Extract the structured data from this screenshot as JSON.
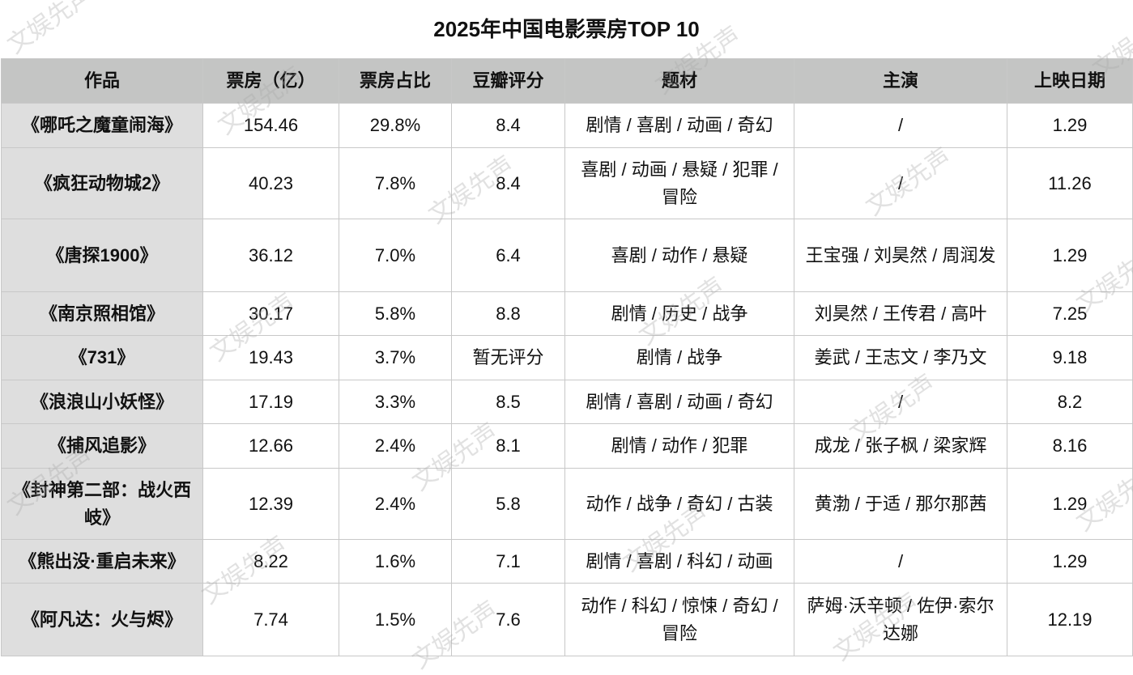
{
  "title": "2025年中国电影票房TOP 10",
  "watermark": "文娱先声",
  "columns": [
    "作品",
    "票房（亿）",
    "票房占比",
    "豆瓣评分",
    "题材",
    "主演",
    "上映日期"
  ],
  "rows": [
    [
      "《哪吒之魔童闹海》",
      "154.46",
      "29.8%",
      "8.4",
      "剧情 / 喜剧 / 动画 / 奇幻",
      "/",
      "1.29"
    ],
    [
      "《疯狂动物城2》",
      "40.23",
      "7.8%",
      "8.4",
      "喜剧 / 动画 / 悬疑 / 犯罪 / 冒险",
      "/",
      "11.26"
    ],
    [
      "《唐探1900》",
      "36.12",
      "7.0%",
      "6.4",
      "喜剧 / 动作 / 悬疑",
      "王宝强 / 刘昊然 / 周润发",
      "1.29"
    ],
    [
      "《南京照相馆》",
      "30.17",
      "5.8%",
      "8.8",
      "剧情 / 历史 / 战争",
      "刘昊然 / 王传君 / 高叶",
      "7.25"
    ],
    [
      "《731》",
      "19.43",
      "3.7%",
      "暂无评分",
      "剧情 / 战争",
      "姜武 / 王志文 / 李乃文",
      "9.18"
    ],
    [
      "《浪浪山小妖怪》",
      "17.19",
      "3.3%",
      "8.5",
      "剧情 / 喜剧 / 动画 / 奇幻",
      "/",
      "8.2"
    ],
    [
      "《捕风追影》",
      "12.66",
      "2.4%",
      "8.1",
      "剧情 / 动作 / 犯罪",
      "成龙 / 张子枫 / 梁家辉",
      "8.16"
    ],
    [
      "《封神第二部：战火西岐》",
      "12.39",
      "2.4%",
      "5.8",
      "动作 / 战争 / 奇幻 / 古装",
      "黄渤 / 于适 / 那尔那茜",
      "1.29"
    ],
    [
      "《熊出没·重启未来》",
      "8.22",
      "1.6%",
      "7.1",
      "剧情 / 喜剧 / 科幻 / 动画",
      "/",
      "1.29"
    ],
    [
      "《阿凡达：火与烬》",
      "7.74",
      "1.5%",
      "7.6",
      "动作 / 科幻 / 惊悚 / 奇幻 / 冒险",
      "萨姆·沃辛顿 / 佐伊·索尔达娜",
      "12.19"
    ]
  ]
}
